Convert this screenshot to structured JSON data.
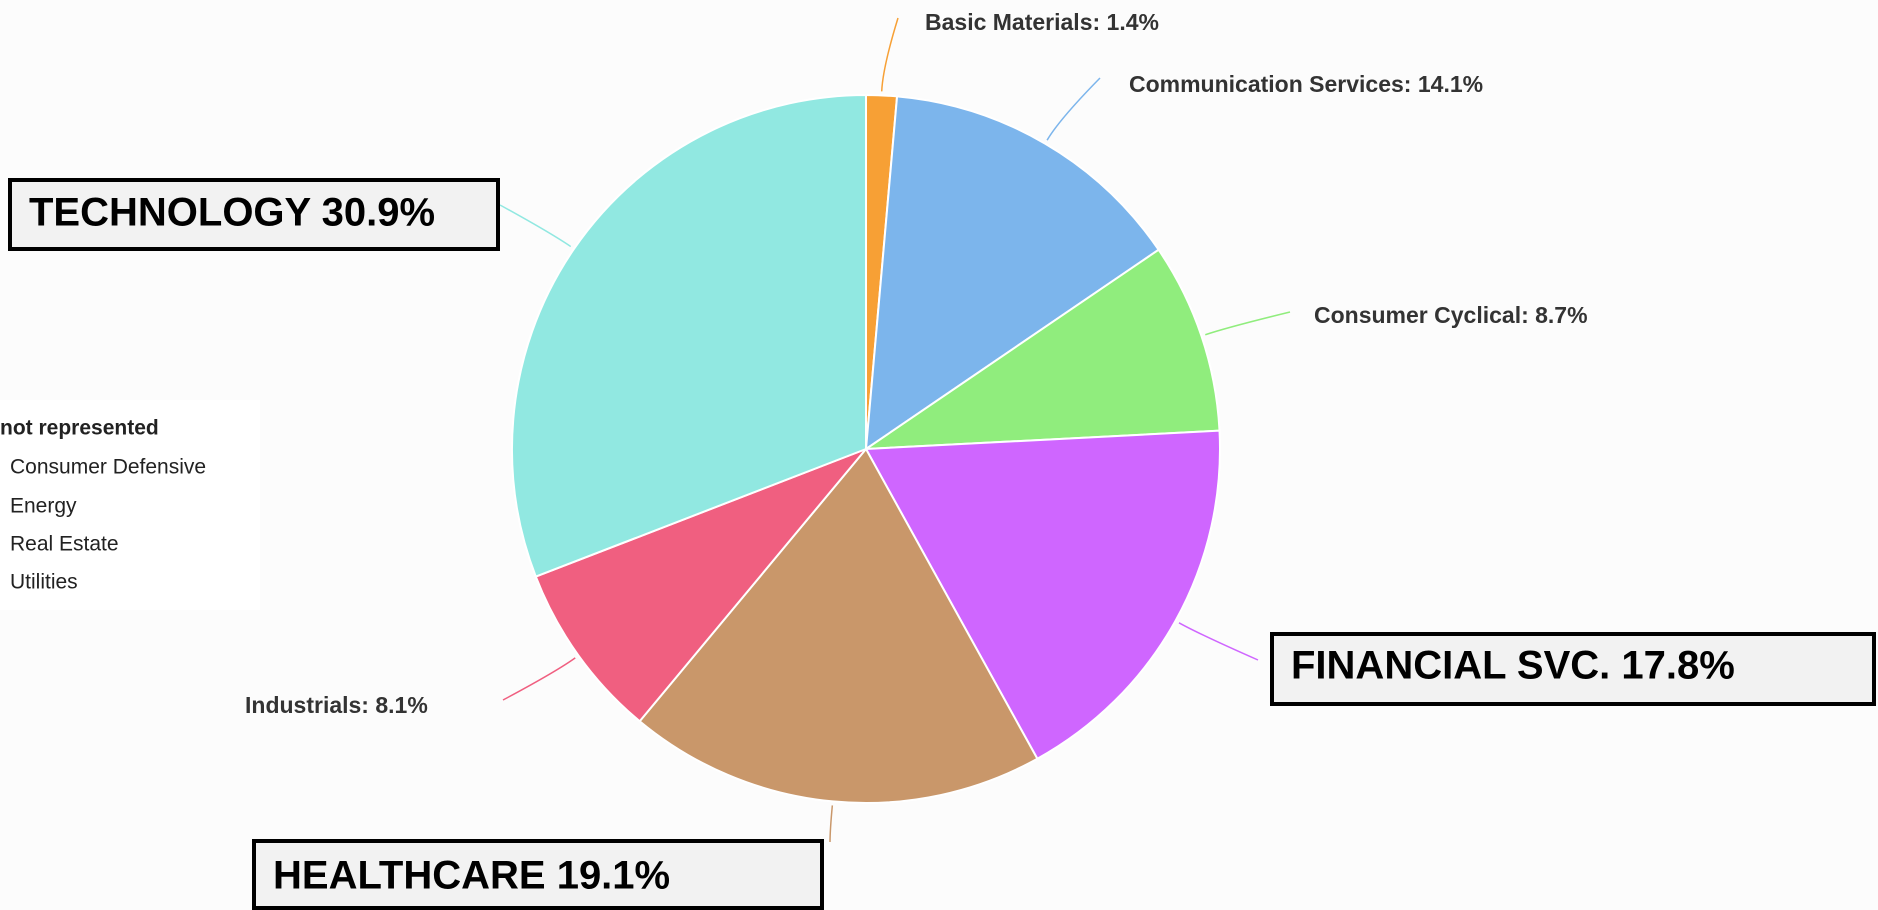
{
  "chart_data": {
    "type": "pie",
    "values": [
      1.4,
      14.1,
      8.7,
      17.8,
      19.1,
      8.1,
      30.9
    ],
    "value_labels": [
      "Basic Materials: 1.4%",
      "Communication Services: 14.1%",
      "Consumer Cyclical: 8.7%",
      "FINANCIAL SVC. 17.8%",
      "HEALTHCARE 19.1%",
      "Industrials: 8.1%",
      "TECHNOLOGY 30.9%"
    ],
    "colors": [
      "#f7a035",
      "#7cb5ec",
      "#90ed7d",
      "#cf66ff",
      "#c9976a",
      "#f05f80",
      "#91e8e1"
    ]
  },
  "not_represented": {
    "title": "not represented",
    "items": [
      "Consumer Defensive",
      "Energy",
      "Real Estate",
      "Utilities"
    ]
  }
}
